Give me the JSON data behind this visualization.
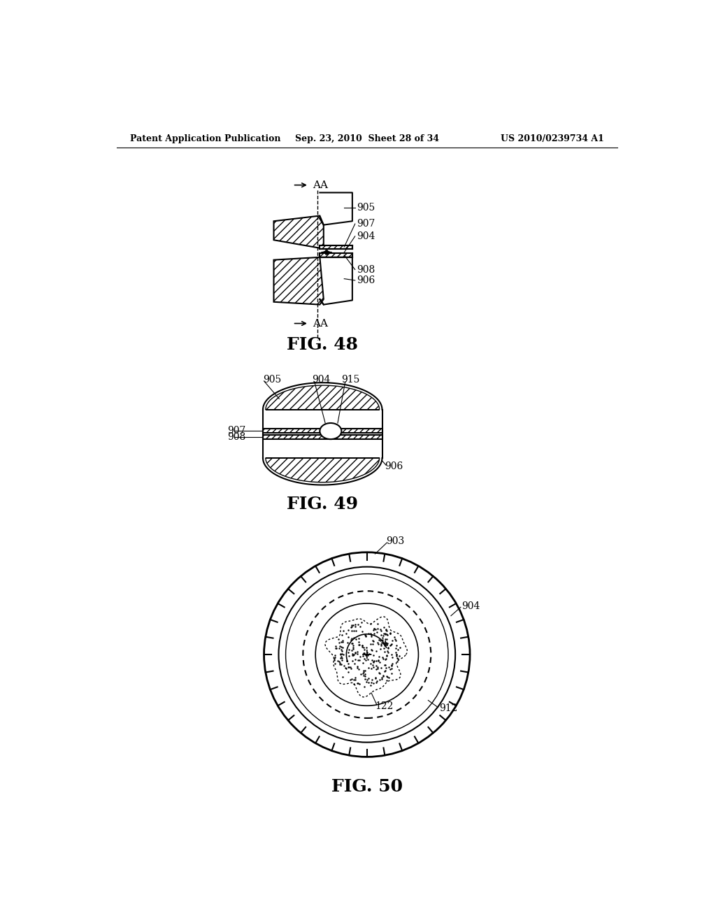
{
  "bg_color": "#ffffff",
  "header_left": "Patent Application Publication",
  "header_center": "Sep. 23, 2010  Sheet 28 of 34",
  "header_right": "US 2010/0239734 A1",
  "fig48_title": "FIG. 48",
  "fig49_title": "FIG. 49",
  "fig50_title": "FIG. 50",
  "label_905": "905",
  "label_907": "907",
  "label_904": "904",
  "label_908": "908",
  "label_906": "906",
  "label_915": "915",
  "label_903": "903",
  "label_912": "912",
  "label_122": "122",
  "label_AA": "AA"
}
